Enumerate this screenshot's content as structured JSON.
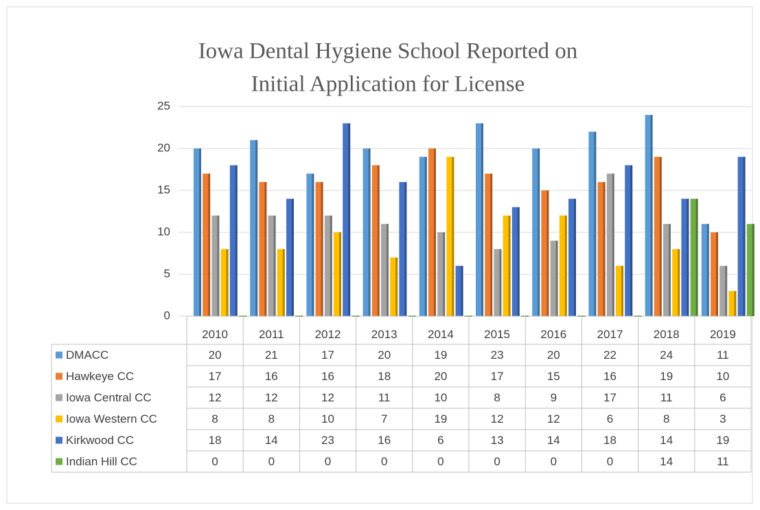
{
  "chart_data": {
    "type": "bar",
    "title": [
      "Iowa Dental Hygiene School Reported on",
      "Initial Application for License"
    ],
    "categories": [
      "2010",
      "2011",
      "2012",
      "2013",
      "2014",
      "2015",
      "2016",
      "2017",
      "2018",
      "2019"
    ],
    "series": [
      {
        "name": "DMACC",
        "color": "#5b9bd5",
        "values": [
          20,
          21,
          17,
          20,
          19,
          23,
          20,
          22,
          24,
          11
        ]
      },
      {
        "name": "Hawkeye CC",
        "color": "#ed7d31",
        "values": [
          17,
          16,
          16,
          18,
          20,
          17,
          15,
          16,
          19,
          10
        ]
      },
      {
        "name": "Iowa Central CC",
        "color": "#a5a5a5",
        "values": [
          12,
          12,
          12,
          11,
          10,
          8,
          9,
          17,
          11,
          6
        ]
      },
      {
        "name": "Iowa Western CC",
        "color": "#ffc000",
        "values": [
          8,
          8,
          10,
          7,
          19,
          12,
          12,
          6,
          8,
          3
        ]
      },
      {
        "name": "Kirkwood CC",
        "color": "#4472c4",
        "values": [
          18,
          14,
          23,
          16,
          6,
          13,
          14,
          18,
          14,
          19
        ]
      },
      {
        "name": "Indian Hill CC",
        "color": "#70ad47",
        "values": [
          0,
          0,
          0,
          0,
          0,
          0,
          0,
          0,
          14,
          11
        ]
      }
    ],
    "ylim": [
      0,
      25
    ],
    "yticks": [
      0,
      5,
      10,
      15,
      20,
      25
    ],
    "grid": true,
    "data_table": true
  }
}
